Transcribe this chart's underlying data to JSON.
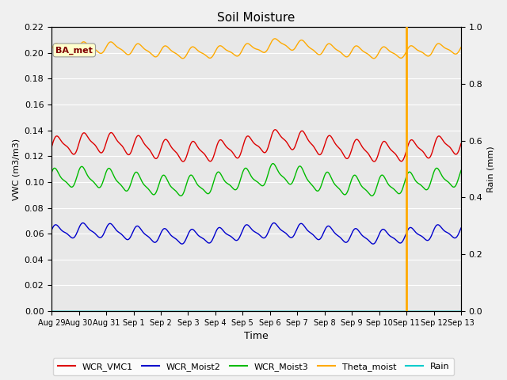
{
  "title": "Soil Moisture",
  "xlabel": "Time",
  "ylabel_left": "VWC (m3/m3)",
  "ylabel_right": "Rain (mm)",
  "ylim_left": [
    0.0,
    0.22
  ],
  "ylim_right": [
    0.0,
    1.0
  ],
  "total_days": 15,
  "n_points": 1500,
  "rain_spike_day": 13.0,
  "annotation_text": "BA_met",
  "bg_color": "#e8e8e8",
  "fig_facecolor": "#f0f0f0",
  "line_colors": {
    "WCR_VMC1": "#dd0000",
    "WCR_Moist2": "#0000cc",
    "WCR_Moist3": "#00bb00",
    "Theta_moist": "#ffaa00",
    "Rain": "#00cccc"
  },
  "series_params": {
    "WCR_VMC1": {
      "base": 0.127,
      "amp": 0.007,
      "period": 1.0,
      "phase": 0.0
    },
    "WCR_Moist2": {
      "base": 0.06,
      "amp": 0.005,
      "period": 1.0,
      "phase": 0.3
    },
    "WCR_Moist3": {
      "base": 0.1,
      "amp": 0.007,
      "period": 1.0,
      "phase": 0.6
    },
    "Theta_moist": {
      "base": 0.202,
      "amp": 0.004,
      "period": 1.0,
      "phase": 0.1
    }
  },
  "xtick_labels": [
    "Aug 29",
    "Aug 30",
    "Aug 31",
    "Sep 1",
    "Sep 2",
    "Sep 3",
    "Sep 4",
    "Sep 5",
    "Sep 6",
    "Sep 7",
    "Sep 8",
    "Sep 9",
    "Sep 10",
    "Sep 11",
    "Sep 12",
    "Sep 13"
  ],
  "yticks_left": [
    0.0,
    0.02,
    0.04,
    0.06,
    0.08,
    0.1,
    0.12,
    0.14,
    0.16,
    0.18,
    0.2,
    0.22
  ],
  "yticks_right": [
    0.0,
    0.2,
    0.4,
    0.6,
    0.8,
    1.0
  ],
  "grid_color": "#ffffff",
  "grid_linewidth": 0.8
}
